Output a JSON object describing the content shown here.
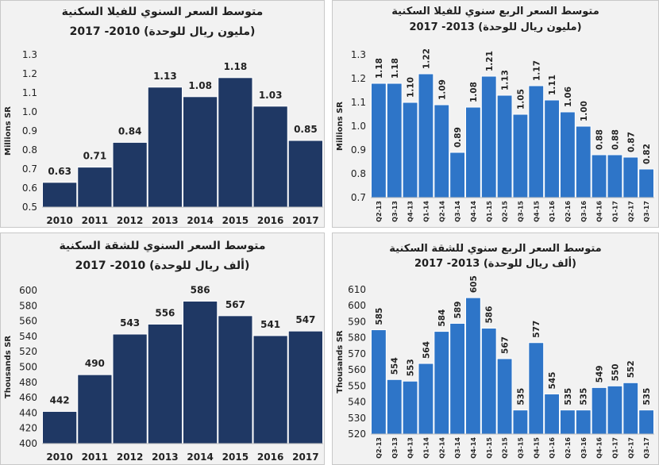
{
  "chart_data": [
    {
      "id": "c1",
      "type": "bar",
      "title_line1": "متوسط السعر السنوي للفيلا السكنية",
      "title_line2": "(مليون ريال للوحدة) 2010- 2017",
      "ylabel": "Millions SR",
      "ylim": [
        0.5,
        1.3
      ],
      "ytick_step": 0.1,
      "ytick_decimals": 1,
      "value_decimals": 2,
      "bar_color": "#1f3864",
      "categories": [
        "2010",
        "2011",
        "2012",
        "2013",
        "2014",
        "2015",
        "2016",
        "2017"
      ],
      "values": [
        0.63,
        0.71,
        0.84,
        1.13,
        1.08,
        1.18,
        1.03,
        0.85
      ]
    },
    {
      "id": "c2",
      "type": "bar",
      "title_line1": "متوسط السعر الربع سنوي للفيلا السكنية",
      "title_line2": "(مليون ريال للوحدة) 2013- 2017",
      "ylabel": "Millions SR",
      "ylim": [
        0.7,
        1.3
      ],
      "ytick_step": 0.1,
      "ytick_decimals": 1,
      "value_decimals": 2,
      "bar_color": "#2e75c8",
      "categories": [
        "Q2-13",
        "Q3-13",
        "Q4-13",
        "Q1-14",
        "Q2-14",
        "Q3-14",
        "Q4-14",
        "Q1-15",
        "Q2-15",
        "Q3-15",
        "Q4-15",
        "Q1-16",
        "Q2-16",
        "Q3-16",
        "Q4-16",
        "Q1-17",
        "Q2-17",
        "Q3-17"
      ],
      "values": [
        1.18,
        1.18,
        1.1,
        1.22,
        1.09,
        0.89,
        1.08,
        1.21,
        1.13,
        1.05,
        1.17,
        1.11,
        1.06,
        1.0,
        0.88,
        0.88,
        0.87,
        0.82
      ]
    },
    {
      "id": "c3",
      "type": "bar",
      "title_line1": "متوسط السعر السنوي للشقة السكنية",
      "title_line2": "(ألف ريال للوحدة) 2010- 2017",
      "ylabel": "Thousands SR",
      "ylim": [
        400,
        600
      ],
      "ytick_step": 20,
      "ytick_decimals": 0,
      "value_decimals": 0,
      "bar_color": "#1f3864",
      "categories": [
        "2010",
        "2011",
        "2012",
        "2013",
        "2014",
        "2015",
        "2016",
        "2017"
      ],
      "values": [
        442,
        490,
        543,
        556,
        586,
        567,
        541,
        547
      ]
    },
    {
      "id": "c4",
      "type": "bar",
      "title_line1": "متوسط السعر الربع سنوي للشقة السكنية",
      "title_line2": "(ألف ريال للوحدة) 2013- 2017",
      "ylabel": "Thousands SR",
      "ylim": [
        520,
        610
      ],
      "ytick_step": 10,
      "ytick_decimals": 0,
      "value_decimals": 0,
      "bar_color": "#2e75c8",
      "categories": [
        "Q2-13",
        "Q3-13",
        "Q4-13",
        "Q1-14",
        "Q2-14",
        "Q3-14",
        "Q4-14",
        "Q1-15",
        "Q2-15",
        "Q3-15",
        "Q4-15",
        "Q1-16",
        "Q2-16",
        "Q3-16",
        "Q4-16",
        "Q1-17",
        "Q2-17",
        "Q3-17"
      ],
      "values": [
        585,
        554,
        553,
        564,
        584,
        589,
        605,
        586,
        567,
        535,
        577,
        545,
        535,
        535,
        549,
        550,
        552,
        535
      ]
    }
  ]
}
